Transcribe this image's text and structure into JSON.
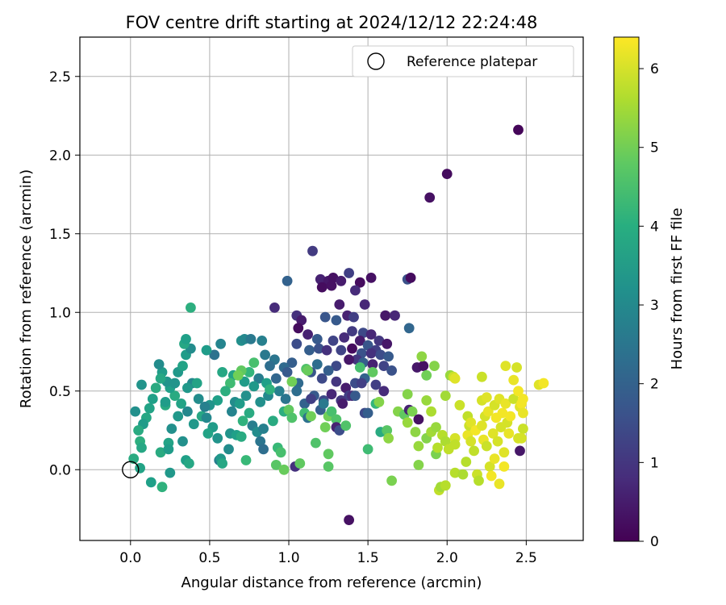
{
  "chart_data": {
    "type": "scatter",
    "title": "FOV centre drift starting at 2024/12/12 22:24:48",
    "xlabel": "Angular distance from reference (arcmin)",
    "ylabel": "Rotation from reference (arcmin)",
    "xlim": [
      -0.32,
      2.86
    ],
    "ylim": [
      -0.45,
      2.75
    ],
    "x_ticks": [
      "0.0",
      "0.5",
      "1.0",
      "1.5",
      "2.0",
      "2.5"
    ],
    "x_tick_values": [
      0,
      0.5,
      1,
      1.5,
      2,
      2.5
    ],
    "y_ticks": [
      "0.0",
      "0.5",
      "1.0",
      "1.5",
      "2.0",
      "2.5"
    ],
    "y_tick_values": [
      0,
      0.5,
      1,
      1.5,
      2,
      2.5
    ],
    "grid": true,
    "legend": {
      "position": "top-right",
      "label": "Reference platepar"
    },
    "reference_point": {
      "x": 0.0,
      "y": 0.0
    },
    "colorbar": {
      "label": "Hours from first FF file",
      "range": [
        0,
        6.4
      ],
      "ticks": [
        "0",
        "1",
        "2",
        "3",
        "4",
        "5",
        "6"
      ],
      "tick_values": [
        0,
        1,
        2,
        3,
        4,
        5,
        6
      ],
      "colormap": "viridis"
    },
    "points": [
      [
        2.45,
        2.16,
        0.1
      ],
      [
        2.0,
        1.88,
        0.2
      ],
      [
        1.89,
        1.73,
        0.3
      ],
      [
        1.38,
        -0.32,
        0.3
      ],
      [
        1.15,
        1.39,
        1.1
      ],
      [
        1.2,
        1.21,
        0.6
      ],
      [
        1.25,
        1.2,
        0.4
      ],
      [
        1.28,
        1.22,
        0.3
      ],
      [
        1.33,
        1.2,
        0.5
      ],
      [
        1.38,
        1.25,
        1.2
      ],
      [
        1.45,
        1.19,
        0.2
      ],
      [
        1.52,
        1.22,
        0.3
      ],
      [
        1.75,
        1.21,
        1.6
      ],
      [
        1.77,
        1.22,
        0.2
      ],
      [
        1.42,
        1.14,
        0.8
      ],
      [
        1.21,
        1.16,
        0.2
      ],
      [
        1.27,
        1.17,
        0.3
      ],
      [
        1.48,
        1.05,
        0.7
      ],
      [
        1.32,
        1.05,
        0.5
      ],
      [
        1.37,
        0.98,
        0.6
      ],
      [
        1.05,
        0.98,
        0.9
      ],
      [
        1.08,
        0.95,
        0.5
      ],
      [
        1.61,
        0.98,
        0.4
      ],
      [
        1.67,
        0.98,
        0.7
      ],
      [
        0.91,
        1.03,
        0.8
      ],
      [
        0.99,
        1.2,
        2.0
      ],
      [
        1.23,
        0.97,
        1.7
      ],
      [
        1.3,
        0.95,
        1.8
      ],
      [
        1.41,
        0.97,
        1.2
      ],
      [
        1.06,
        0.9,
        0.2
      ],
      [
        1.12,
        0.86,
        0.6
      ],
      [
        1.18,
        0.83,
        1.8
      ],
      [
        1.28,
        0.82,
        1.3
      ],
      [
        1.35,
        0.84,
        0.8
      ],
      [
        1.4,
        0.88,
        1.1
      ],
      [
        1.47,
        0.87,
        1.4
      ],
      [
        1.52,
        0.86,
        0.7
      ],
      [
        1.57,
        0.82,
        1.0
      ],
      [
        1.62,
        0.8,
        0.4
      ],
      [
        1.76,
        0.9,
        2.1
      ],
      [
        1.45,
        0.82,
        0.5
      ],
      [
        1.5,
        0.79,
        1.7
      ],
      [
        1.55,
        0.76,
        1.2
      ],
      [
        1.05,
        0.8,
        1.5
      ],
      [
        1.13,
        0.76,
        1.9
      ],
      [
        1.19,
        0.77,
        1.6
      ],
      [
        1.24,
        0.76,
        0.9
      ],
      [
        1.33,
        0.76,
        1.3
      ],
      [
        1.4,
        0.77,
        0.2
      ],
      [
        1.46,
        0.74,
        1.6
      ],
      [
        1.52,
        0.74,
        0.9
      ],
      [
        1.58,
        0.73,
        1.5
      ],
      [
        1.63,
        0.72,
        1.8
      ],
      [
        1.43,
        0.7,
        1.0
      ],
      [
        1.38,
        0.7,
        0.4
      ],
      [
        1.47,
        0.68,
        1.9
      ],
      [
        1.53,
        0.67,
        0.6
      ],
      [
        1.6,
        0.66,
        1.3
      ],
      [
        1.3,
        0.66,
        1.4
      ],
      [
        1.25,
        0.63,
        1.9
      ],
      [
        1.18,
        0.67,
        2.3
      ],
      [
        1.11,
        0.64,
        4.6
      ],
      [
        1.02,
        0.68,
        1.9
      ],
      [
        0.97,
        0.65,
        2.2
      ],
      [
        0.91,
        0.7,
        2.5
      ],
      [
        0.85,
        0.73,
        2.6
      ],
      [
        0.83,
        0.82,
        2.8
      ],
      [
        0.81,
        0.58,
        2.7
      ],
      [
        0.88,
        0.66,
        2.3
      ],
      [
        0.92,
        0.58,
        2.1
      ],
      [
        0.99,
        0.62,
        1.8
      ],
      [
        1.06,
        0.55,
        2.2
      ],
      [
        1.14,
        0.62,
        1.7
      ],
      [
        1.21,
        0.58,
        1.4
      ],
      [
        1.3,
        0.56,
        1.0
      ],
      [
        1.36,
        0.52,
        0.5
      ],
      [
        1.42,
        0.55,
        1.5
      ],
      [
        1.48,
        0.58,
        2.0
      ],
      [
        1.55,
        0.54,
        1.2
      ],
      [
        1.6,
        0.5,
        0.8
      ],
      [
        1.65,
        0.63,
        1.6
      ],
      [
        1.81,
        0.65,
        0.4
      ],
      [
        1.85,
        0.66,
        0.3
      ],
      [
        1.38,
        0.47,
        1.2
      ],
      [
        1.33,
        0.44,
        1.0
      ],
      [
        1.27,
        0.48,
        0.7
      ],
      [
        1.22,
        0.44,
        1.4
      ],
      [
        1.16,
        0.47,
        1.8
      ],
      [
        1.1,
        0.42,
        2.0
      ],
      [
        1.05,
        0.5,
        2.3
      ],
      [
        0.98,
        0.45,
        2.5
      ],
      [
        0.94,
        0.5,
        2.8
      ],
      [
        0.87,
        0.47,
        3.0
      ],
      [
        0.82,
        0.43,
        3.2
      ],
      [
        0.78,
        0.53,
        3.4
      ],
      [
        0.72,
        0.56,
        3.5
      ],
      [
        0.65,
        0.6,
        3.7
      ],
      [
        0.58,
        0.62,
        3.8
      ],
      [
        0.53,
        0.73,
        2.4
      ],
      [
        0.48,
        0.76,
        3.5
      ],
      [
        0.57,
        0.8,
        2.9
      ],
      [
        0.7,
        0.82,
        3.2
      ],
      [
        0.72,
        0.83,
        3.0
      ],
      [
        0.76,
        0.83,
        2.6
      ],
      [
        0.78,
        0.68,
        4.5
      ],
      [
        0.75,
        0.62,
        4.2
      ],
      [
        0.7,
        0.63,
        4.8
      ],
      [
        0.68,
        0.6,
        5.0
      ],
      [
        0.63,
        0.55,
        4.4
      ],
      [
        0.6,
        0.5,
        4.0
      ],
      [
        0.55,
        0.44,
        3.6
      ],
      [
        0.5,
        0.41,
        3.3
      ],
      [
        0.45,
        0.34,
        3.8
      ],
      [
        0.4,
        0.29,
        3.4
      ],
      [
        0.36,
        0.37,
        3.0
      ],
      [
        0.32,
        0.42,
        3.7
      ],
      [
        0.28,
        0.47,
        3.9
      ],
      [
        0.25,
        0.52,
        3.6
      ],
      [
        0.23,
        0.56,
        3.3
      ],
      [
        0.2,
        0.62,
        3.5
      ],
      [
        0.18,
        0.67,
        3.1
      ],
      [
        0.19,
        0.58,
        3.8
      ],
      [
        0.16,
        0.52,
        3.9
      ],
      [
        0.14,
        0.45,
        3.6
      ],
      [
        0.12,
        0.39,
        3.7
      ],
      [
        0.1,
        0.33,
        3.8
      ],
      [
        0.08,
        0.29,
        3.5
      ],
      [
        0.05,
        0.25,
        3.9
      ],
      [
        0.06,
        0.18,
        4.0
      ],
      [
        0.07,
        0.14,
        3.8
      ],
      [
        0.03,
        0.37,
        3.2
      ],
      [
        0.07,
        0.54,
        3.3
      ],
      [
        0.02,
        0.07,
        3.9
      ],
      [
        0.06,
        0.01,
        3.7
      ],
      [
        0.13,
        -0.08,
        3.6
      ],
      [
        0.2,
        -0.11,
        4.1
      ],
      [
        0.25,
        -0.02,
        3.4
      ],
      [
        0.19,
        0.11,
        3.9
      ],
      [
        0.24,
        0.17,
        3.7
      ],
      [
        0.24,
        0.13,
        3.5
      ],
      [
        0.33,
        0.18,
        3.2
      ],
      [
        0.35,
        0.06,
        3.6
      ],
      [
        0.37,
        0.04,
        3.8
      ],
      [
        0.3,
        0.34,
        3.4
      ],
      [
        0.26,
        0.26,
        3.2
      ],
      [
        0.22,
        0.41,
        3.9
      ],
      [
        0.22,
        0.43,
        3.5
      ],
      [
        0.28,
        0.55,
        3.3
      ],
      [
        0.3,
        0.62,
        3.4
      ],
      [
        0.33,
        0.66,
        3.7
      ],
      [
        0.35,
        0.73,
        3.5
      ],
      [
        0.38,
        0.77,
        3.1
      ],
      [
        0.34,
        0.8,
        3.8
      ],
      [
        0.35,
        0.83,
        3.6
      ],
      [
        0.38,
        1.03,
        4.0
      ],
      [
        0.39,
        0.55,
        3.0
      ],
      [
        0.36,
        0.52,
        3.4
      ],
      [
        0.42,
        0.55,
        3.7
      ],
      [
        0.43,
        0.45,
        3.1
      ],
      [
        0.47,
        0.4,
        2.8
      ],
      [
        0.48,
        0.33,
        3.0
      ],
      [
        0.52,
        0.27,
        3.5
      ],
      [
        0.49,
        0.23,
        3.7
      ],
      [
        0.55,
        0.2,
        3.3
      ],
      [
        0.56,
        0.06,
        2.7
      ],
      [
        0.57,
        0.07,
        3.4
      ],
      [
        0.58,
        0.04,
        3.8
      ],
      [
        0.62,
        0.13,
        3.1
      ],
      [
        0.63,
        0.23,
        3.3
      ],
      [
        0.64,
        0.37,
        2.9
      ],
      [
        0.66,
        0.43,
        3.1
      ],
      [
        0.67,
        0.22,
        3.6
      ],
      [
        0.7,
        0.21,
        3.9
      ],
      [
        0.71,
        0.31,
        4.1
      ],
      [
        0.69,
        0.42,
        3.5
      ],
      [
        0.73,
        0.47,
        3.2
      ],
      [
        0.75,
        0.36,
        3.9
      ],
      [
        0.73,
        0.06,
        4.3
      ],
      [
        0.77,
        0.28,
        2.7
      ],
      [
        0.8,
        0.24,
        3.1
      ],
      [
        0.82,
        0.18,
        2.5
      ],
      [
        0.84,
        0.13,
        2.3
      ],
      [
        0.84,
        0.26,
        2.8
      ],
      [
        0.86,
        0.55,
        3.6
      ],
      [
        0.9,
        0.31,
        3.9
      ],
      [
        0.88,
        0.51,
        4.1
      ],
      [
        0.93,
        0.14,
        4.3
      ],
      [
        0.95,
        0.11,
        4.5
      ],
      [
        0.92,
        0.03,
        4.7
      ],
      [
        0.97,
        0.0,
        4.9
      ],
      [
        0.97,
        0.37,
        4.0
      ],
      [
        1.0,
        0.38,
        4.8
      ],
      [
        1.02,
        0.33,
        4.6
      ],
      [
        1.02,
        0.56,
        5.0
      ],
      [
        1.04,
        0.02,
        0.9
      ],
      [
        1.07,
        0.04,
        4.8
      ],
      [
        1.1,
        0.36,
        4.4
      ],
      [
        1.12,
        0.33,
        2.4
      ],
      [
        1.14,
        0.34,
        5.0
      ],
      [
        1.14,
        0.45,
        1.2
      ],
      [
        1.12,
        0.63,
        4.9
      ],
      [
        1.17,
        0.17,
        4.6
      ],
      [
        1.2,
        0.38,
        1.9
      ],
      [
        1.23,
        0.27,
        5.0
      ],
      [
        1.22,
        0.42,
        2.6
      ],
      [
        1.25,
        0.1,
        4.8
      ],
      [
        1.25,
        0.02,
        4.7
      ],
      [
        1.25,
        0.34,
        5.0
      ],
      [
        1.27,
        0.37,
        4.5
      ],
      [
        1.3,
        0.32,
        4.6
      ],
      [
        1.3,
        0.27,
        0.6
      ],
      [
        1.32,
        0.25,
        1.5
      ],
      [
        1.34,
        0.42,
        0.5
      ],
      [
        1.36,
        0.28,
        4.6
      ],
      [
        1.4,
        0.47,
        0.8
      ],
      [
        1.42,
        0.47,
        1.8
      ],
      [
        1.45,
        0.65,
        4.5
      ],
      [
        1.48,
        0.36,
        1.4
      ],
      [
        1.46,
        0.55,
        1.2
      ],
      [
        1.5,
        0.36,
        1.9
      ],
      [
        1.5,
        0.13,
        4.4
      ],
      [
        1.53,
        0.62,
        4.8
      ],
      [
        1.55,
        0.42,
        4.2
      ],
      [
        1.57,
        0.43,
        5.2
      ],
      [
        1.58,
        0.24,
        3.9
      ],
      [
        1.62,
        0.25,
        4.7
      ],
      [
        1.63,
        0.2,
        5.3
      ],
      [
        1.65,
        -0.07,
        5.1
      ],
      [
        1.69,
        0.37,
        5.2
      ],
      [
        1.73,
        0.35,
        4.8
      ],
      [
        1.75,
        0.3,
        5.4
      ],
      [
        1.75,
        0.48,
        5.2
      ],
      [
        1.76,
        0.38,
        0.6
      ],
      [
        1.78,
        0.37,
        5.1
      ],
      [
        1.8,
        0.24,
        5.3
      ],
      [
        1.82,
        0.32,
        0.3
      ],
      [
        1.82,
        0.15,
        5.4
      ],
      [
        1.82,
        0.03,
        5.2
      ],
      [
        1.84,
        0.72,
        5.3
      ],
      [
        1.87,
        0.2,
        5.2
      ],
      [
        1.87,
        0.6,
        5.0
      ],
      [
        1.87,
        0.44,
        5.4
      ],
      [
        1.9,
        0.37,
        5.6
      ],
      [
        1.9,
        0.24,
        5.5
      ],
      [
        1.92,
        0.66,
        5.2
      ],
      [
        1.93,
        0.27,
        5.4
      ],
      [
        1.93,
        0.1,
        5.1
      ],
      [
        1.94,
        0.14,
        5.7
      ],
      [
        1.95,
        -0.13,
        5.8
      ],
      [
        1.96,
        -0.11,
        5.5
      ],
      [
        1.97,
        0.22,
        5.7
      ],
      [
        1.99,
        0.18,
        5.6
      ],
      [
        1.99,
        -0.1,
        5.7
      ],
      [
        1.99,
        0.47,
        5.5
      ],
      [
        2.01,
        0.13,
        5.8
      ],
      [
        2.02,
        0.6,
        5.4
      ],
      [
        2.04,
        0.59,
        5.9
      ],
      [
        2.05,
        0.58,
        6.1
      ],
      [
        2.05,
        0.2,
        6.0
      ],
      [
        2.05,
        0.16,
        5.8
      ],
      [
        2.05,
        -0.02,
        5.7
      ],
      [
        2.08,
        0.41,
        5.9
      ],
      [
        2.1,
        -0.03,
        5.6
      ],
      [
        2.12,
        0.05,
        5.7
      ],
      [
        2.13,
        0.22,
        6.2
      ],
      [
        2.13,
        0.34,
        5.8
      ],
      [
        2.14,
        0.28,
        5.9
      ],
      [
        2.15,
        0.18,
        6.0
      ],
      [
        2.15,
        0.3,
        6.1
      ],
      [
        2.17,
        0.12,
        5.8
      ],
      [
        2.18,
        0.25,
        6.3
      ],
      [
        2.19,
        -0.03,
        5.9
      ],
      [
        2.2,
        -0.07,
        5.7
      ],
      [
        2.22,
        0.44,
        6.0
      ],
      [
        2.22,
        0.59,
        5.9
      ],
      [
        2.22,
        0.28,
        6.1
      ],
      [
        2.23,
        0.19,
        6.2
      ],
      [
        2.24,
        0.34,
        6.0
      ],
      [
        2.25,
        0.46,
        6.1
      ],
      [
        2.25,
        0.15,
        5.9
      ],
      [
        2.26,
        0.37,
        6.2
      ],
      [
        2.27,
        0.02,
        6.0
      ],
      [
        2.28,
        -0.04,
        6.3
      ],
      [
        2.29,
        0.23,
        6.1
      ],
      [
        2.3,
        0.41,
        6.0
      ],
      [
        2.3,
        0.07,
        6.2
      ],
      [
        2.31,
        0.33,
        6.3
      ],
      [
        2.32,
        0.18,
        6.0
      ],
      [
        2.33,
        0.45,
        6.1
      ],
      [
        2.33,
        -0.09,
        6.2
      ],
      [
        2.34,
        0.27,
        6.0
      ],
      [
        2.35,
        0.36,
        6.3
      ],
      [
        2.36,
        0.11,
        6.1
      ],
      [
        2.36,
        0.02,
        6.3
      ],
      [
        2.37,
        0.42,
        6.2
      ],
      [
        2.37,
        0.66,
        6.1
      ],
      [
        2.38,
        0.3,
        6.0
      ],
      [
        2.39,
        0.23,
        6.2
      ],
      [
        2.4,
        0.34,
        6.3
      ],
      [
        2.42,
        0.45,
        5.9
      ],
      [
        2.42,
        0.57,
        6.2
      ],
      [
        2.44,
        0.65,
        6.0
      ],
      [
        2.45,
        0.5,
        6.3
      ],
      [
        2.45,
        0.2,
        6.0
      ],
      [
        2.46,
        0.12,
        0.4
      ],
      [
        2.46,
        0.4,
        6.1
      ],
      [
        2.47,
        0.42,
        6.3
      ],
      [
        2.48,
        0.36,
        6.2
      ],
      [
        2.48,
        0.26,
        5.9
      ],
      [
        2.48,
        0.45,
        6.3
      ],
      [
        2.47,
        0.2,
        6.0
      ],
      [
        2.58,
        0.54,
        6.1
      ],
      [
        2.61,
        0.55,
        6.3
      ]
    ]
  }
}
